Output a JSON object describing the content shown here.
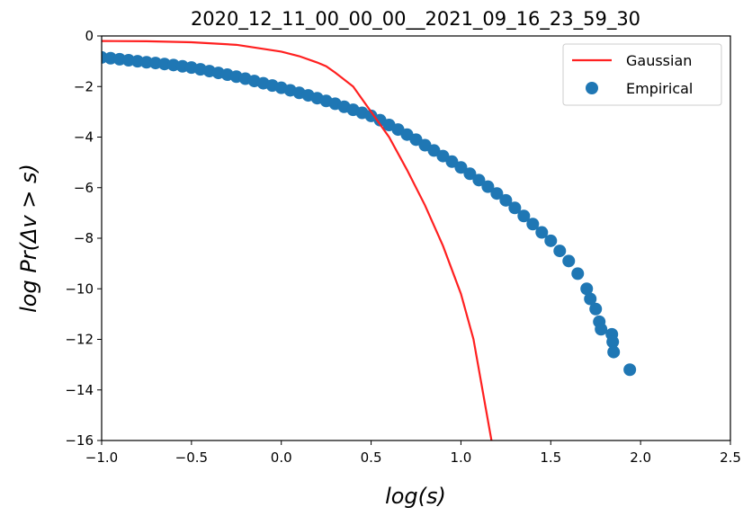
{
  "chart_data": {
    "type": "scatter",
    "title": "2020_12_11_00_00_00__2021_09_16_23_59_30",
    "xlabel": "log(s)",
    "ylabel": "log Pr(Δv > s)",
    "xlim": [
      -1.0,
      2.5
    ],
    "ylim": [
      -16,
      0
    ],
    "xticks": [
      "−1.0",
      "−0.5",
      "0.0",
      "0.5",
      "1.0",
      "1.5",
      "2.0",
      "2.5"
    ],
    "xtick_values": [
      -1.0,
      -0.5,
      0.0,
      0.5,
      1.0,
      1.5,
      2.0,
      2.5
    ],
    "yticks": [
      "0",
      "−2",
      "−4",
      "−6",
      "−8",
      "−10",
      "−12",
      "−14",
      "−16"
    ],
    "ytick_values": [
      0,
      -2,
      -4,
      -6,
      -8,
      -10,
      -12,
      -14,
      -16
    ],
    "grid": false,
    "legend_position": "top-right",
    "series": [
      {
        "name": "Gaussian",
        "kind": "line",
        "color": "#ff2020",
        "x": [
          -1.0,
          -0.75,
          -0.5,
          -0.25,
          0.0,
          0.1,
          0.2,
          0.25,
          0.3,
          0.4,
          0.5,
          0.6,
          0.7,
          0.8,
          0.9,
          1.0,
          1.07,
          1.12,
          1.17
        ],
        "y": [
          -0.2,
          -0.21,
          -0.25,
          -0.35,
          -0.62,
          -0.8,
          -1.05,
          -1.2,
          -1.45,
          -2.0,
          -3.0,
          -4.0,
          -5.3,
          -6.7,
          -8.3,
          -10.2,
          -12.0,
          -14.0,
          -16.0
        ]
      },
      {
        "name": "Empirical",
        "kind": "scatter",
        "color": "#1f77b4",
        "x": [
          -1.0,
          -0.95,
          -0.9,
          -0.85,
          -0.8,
          -0.75,
          -0.7,
          -0.65,
          -0.6,
          -0.55,
          -0.5,
          -0.45,
          -0.4,
          -0.35,
          -0.3,
          -0.25,
          -0.2,
          -0.15,
          -0.1,
          -0.05,
          0.0,
          0.05,
          0.1,
          0.15,
          0.2,
          0.25,
          0.3,
          0.35,
          0.4,
          0.45,
          0.5,
          0.55,
          0.6,
          0.65,
          0.7,
          0.75,
          0.8,
          0.85,
          0.9,
          0.95,
          1.0,
          1.05,
          1.1,
          1.15,
          1.2,
          1.25,
          1.3,
          1.35,
          1.4,
          1.45,
          1.5,
          1.55,
          1.6,
          1.65,
          1.7,
          1.72,
          1.75,
          1.77,
          1.78,
          1.84,
          1.845,
          1.85,
          1.94
        ],
        "y": [
          -0.85,
          -0.88,
          -0.92,
          -0.96,
          -1.0,
          -1.04,
          -1.07,
          -1.11,
          -1.15,
          -1.2,
          -1.25,
          -1.32,
          -1.39,
          -1.46,
          -1.53,
          -1.61,
          -1.69,
          -1.78,
          -1.87,
          -1.96,
          -2.05,
          -2.15,
          -2.25,
          -2.35,
          -2.46,
          -2.57,
          -2.68,
          -2.8,
          -2.92,
          -3.04,
          -3.16,
          -3.33,
          -3.52,
          -3.7,
          -3.9,
          -4.1,
          -4.32,
          -4.53,
          -4.75,
          -4.97,
          -5.2,
          -5.45,
          -5.7,
          -5.96,
          -6.23,
          -6.5,
          -6.8,
          -7.12,
          -7.44,
          -7.77,
          -8.1,
          -8.5,
          -8.9,
          -9.4,
          -10.0,
          -10.4,
          -10.8,
          -11.3,
          -11.6,
          -11.8,
          -12.1,
          -12.5,
          -13.2
        ]
      }
    ]
  }
}
